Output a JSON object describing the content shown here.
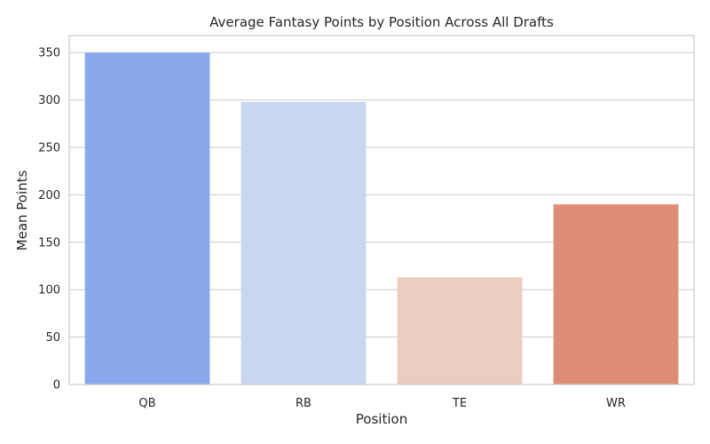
{
  "chart_data": {
    "type": "bar",
    "title": "Average Fantasy Points by Position Across All Drafts",
    "xlabel": "Position",
    "ylabel": "Mean Points",
    "categories": [
      "QB",
      "RB",
      "TE",
      "WR"
    ],
    "values": [
      350,
      298,
      113,
      190
    ],
    "colors": [
      "#8aa8ec",
      "#c8d6f2",
      "#eacdbf",
      "#de8e76"
    ],
    "ylim": [
      0,
      368
    ],
    "yticks": [
      0,
      50,
      100,
      150,
      200,
      250,
      300,
      350
    ],
    "grid": true,
    "legend": "none"
  }
}
